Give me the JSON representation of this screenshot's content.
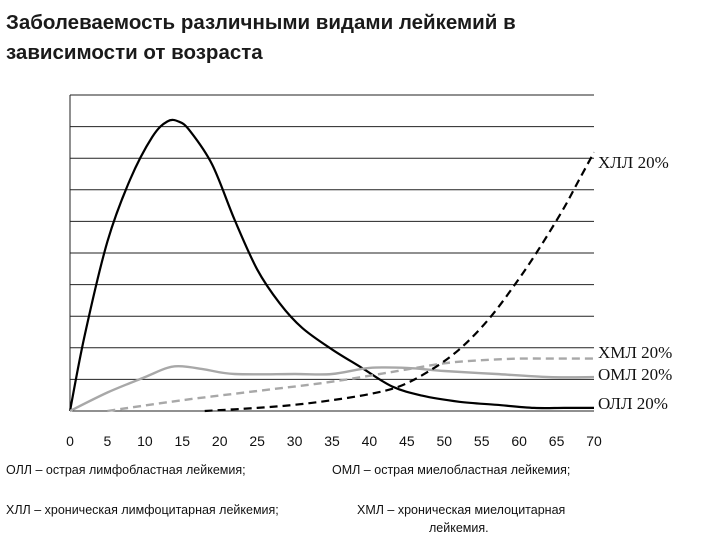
{
  "title_line1": "Заболеваемость различными видами лейкемий в",
  "title_line2": "зависимости от возраста",
  "chart_data": {
    "type": "line",
    "title": "Заболеваемость различными видами лейкемий в зависимости от возраста",
    "xlabel": "",
    "ylabel": "",
    "xlim": [
      0,
      70
    ],
    "ylim": [
      0,
      100
    ],
    "x_ticks": [
      0,
      5,
      10,
      15,
      20,
      25,
      30,
      35,
      40,
      45,
      50,
      55,
      60,
      65,
      70
    ],
    "grid": "horizontal",
    "series": [
      {
        "name": "ОЛЛ 20%",
        "style": "solid",
        "color": "#000000",
        "x": [
          0,
          2,
          5,
          8,
          11,
          13,
          14.5,
          16,
          19,
          22,
          25,
          28,
          31,
          35,
          39,
          43,
          47,
          52,
          57,
          62,
          66,
          70
        ],
        "y": [
          0,
          25,
          55,
          75,
          89,
          94,
          94,
          91,
          80,
          62,
          46,
          35,
          27,
          20,
          14,
          8,
          5,
          3,
          2,
          1,
          1,
          1
        ]
      },
      {
        "name": "ОМЛ 20%",
        "style": "solid",
        "color": "#a8a8a8",
        "x": [
          0,
          5,
          10,
          13,
          15,
          18,
          22,
          30,
          35,
          40,
          45,
          50,
          57,
          64,
          70
        ],
        "y": [
          0,
          6,
          11,
          14,
          14.5,
          13.5,
          12,
          12,
          12,
          14,
          14,
          13,
          12,
          11,
          11
        ]
      },
      {
        "name": "ХМЛ 20%",
        "style": "dashed",
        "color": "#a8a8a8",
        "x": [
          5,
          15,
          25,
          35,
          45,
          50,
          55,
          60,
          65,
          70
        ],
        "y": [
          0,
          3.5,
          6.5,
          9.5,
          13.5,
          15.5,
          16.5,
          17,
          17,
          17
        ]
      },
      {
        "name": "ХЛЛ 20%",
        "style": "dashed",
        "color": "#000000",
        "x": [
          18,
          25,
          30,
          35,
          40,
          44,
          48,
          52,
          56,
          60,
          63,
          66,
          68,
          70
        ],
        "y": [
          0,
          1,
          2,
          3.5,
          5.5,
          8,
          13,
          20,
          30,
          43,
          54,
          66,
          75,
          84
        ]
      }
    ],
    "labels": [
      {
        "text": "ХЛЛ 20%",
        "series": "ХЛЛ 20%"
      },
      {
        "text": "ХМЛ 20%",
        "series": "ХМЛ 20%"
      },
      {
        "text": "ОМЛ 20%",
        "series": "ОМЛ 20%"
      },
      {
        "text": "ОЛЛ 20%",
        "series": "ОЛЛ 20%"
      }
    ]
  },
  "legend": {
    "oll": "ОЛЛ – острая лимфобластная лейкемия;",
    "oml": "ОМЛ – острая миелобластная лейкемия;",
    "hll": "ХЛЛ – хроническая лимфоцитарная лейкемия;",
    "hml_line1": "ХМЛ – хроническая миелоцитарная",
    "hml_line2": "лейкемия."
  }
}
